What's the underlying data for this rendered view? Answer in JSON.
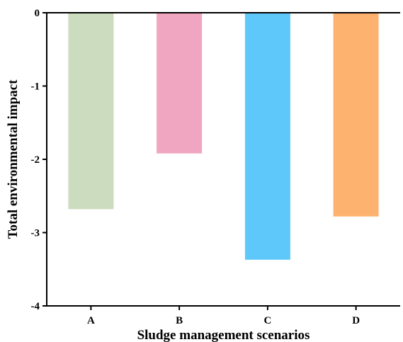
{
  "chart_data": {
    "type": "bar",
    "categories": [
      "A",
      "B",
      "C",
      "D"
    ],
    "values": [
      -2.68,
      -1.92,
      -3.37,
      -2.78
    ],
    "colors": [
      "#ccdcbf",
      "#f0a6c0",
      "#5fc8fa",
      "#fdb270"
    ],
    "title": "",
    "xlabel": "Sludge management scenarios",
    "ylabel": "Total environmental impact",
    "ylim": [
      -4,
      0
    ],
    "yticks": [
      0,
      -1,
      -2,
      -3,
      -4
    ],
    "ytick_labels": [
      "0",
      "-1",
      "-2",
      "-3",
      "-4"
    ],
    "grid": false,
    "legend": "none"
  }
}
